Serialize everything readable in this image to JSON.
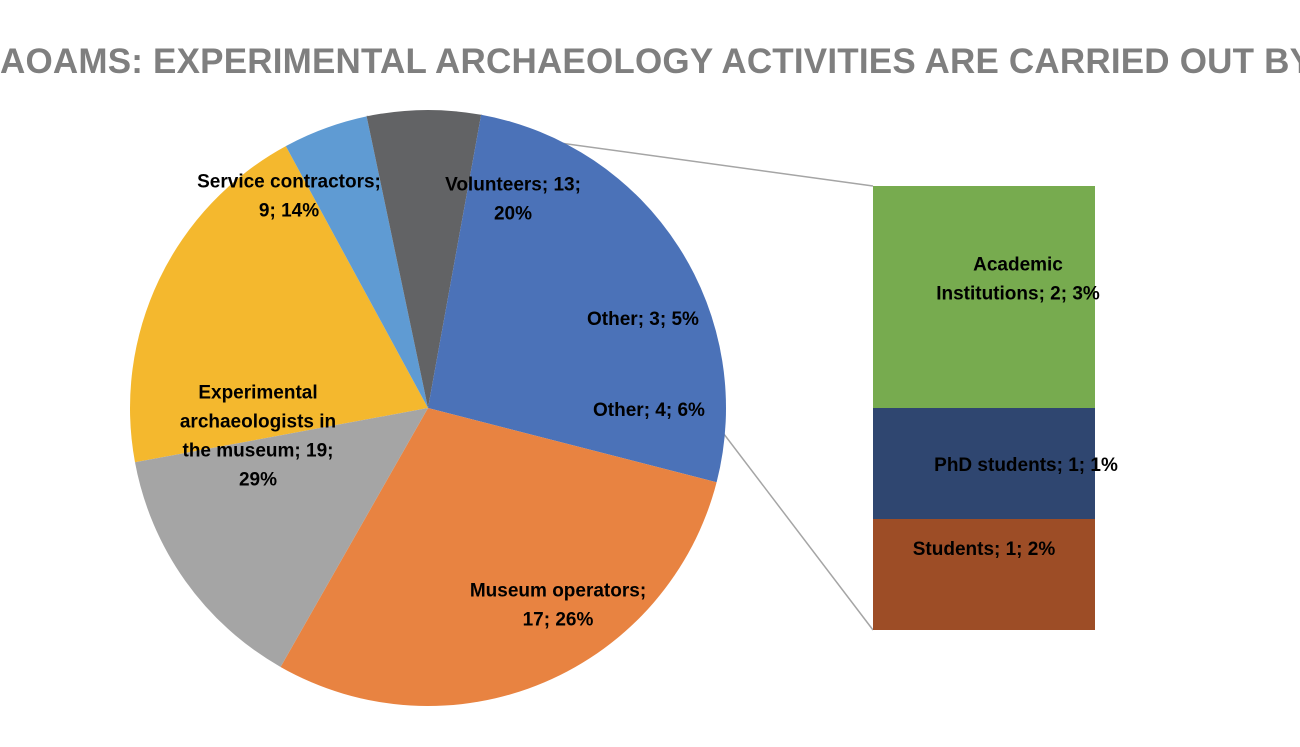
{
  "chart_data": {
    "type": "pie",
    "title": "AOAMS: EXPERIMENTAL ARCHAEOLOGY ACTIVITIES ARE CARRIED OUT BY",
    "pie_slices": [
      {
        "name": "Volunteers",
        "value": 13,
        "percent": "20%",
        "color": "#f4b82e",
        "label_lines": [
          "Volunteers; 13;",
          "20%"
        ]
      },
      {
        "name": "Other",
        "value": 3,
        "percent": "5%",
        "color": "#5f9bd3",
        "label_lines": [
          "Other; 3; 5%"
        ]
      },
      {
        "name": "Other",
        "value": 4,
        "percent": "6%",
        "color": "#626365",
        "label_lines": [
          "Other; 4; 6%"
        ]
      },
      {
        "name": "Museum operators",
        "value": 17,
        "percent": "26%",
        "color": "#4b72b8",
        "label_lines": [
          "Museum operators;",
          "17; 26%"
        ]
      },
      {
        "name": "Experimental archaeologists in the museum",
        "value": 19,
        "percent": "29%",
        "color": "#e88341",
        "label_lines": [
          "Experimental",
          "archaeologists in",
          "the museum; 19;",
          "29%"
        ]
      },
      {
        "name": "Service contractors",
        "value": 9,
        "percent": "14%",
        "color": "#a5a5a5",
        "label_lines": [
          "Service contractors;",
          "9; 14%"
        ]
      }
    ],
    "breakdown_of": "Other; 4; 6%",
    "breakdown_bar": [
      {
        "name": "Academic Institutions",
        "value": 2,
        "percent": "3%",
        "color": "#77ab4f",
        "label_lines": [
          "Academic",
          "Institutions; 2; 3%"
        ]
      },
      {
        "name": "PhD students",
        "value": 1,
        "percent": "1%",
        "color": "#2f4670",
        "label_lines": [
          "PhD students; 1; 1%"
        ]
      },
      {
        "name": "Students",
        "value": 1,
        "percent": "2%",
        "color": "#9d4d26",
        "label_lines": [
          "Students; 1; 2%"
        ]
      }
    ],
    "connector_color": "#a5a5a5"
  }
}
